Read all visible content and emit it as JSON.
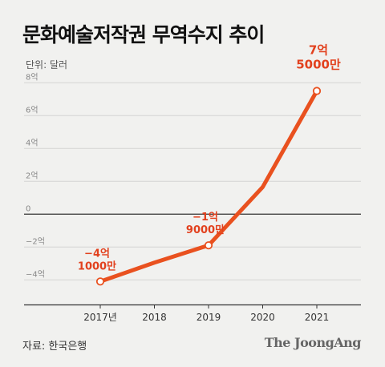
{
  "title": "문화예술저작권 무역수지 추이",
  "unit": "단위: 달러",
  "source": "자료: 한국은행",
  "brand": "The JoongAng",
  "colors": {
    "line": "#e9511f",
    "annotation": "#e2411e",
    "grid": "#d4d4d4",
    "axis": "#333333",
    "background": "#f1f1ef"
  },
  "chart_data": {
    "type": "line",
    "x": [
      "2017년",
      "2018",
      "2019",
      "2020",
      "2021"
    ],
    "series": [
      {
        "values": [
          -4.1,
          -2.95,
          -1.9,
          1.65,
          7.5
        ]
      }
    ],
    "ylim": [
      -5.5,
      8.5
    ],
    "yticks": [
      8,
      6,
      4,
      2,
      0,
      -2,
      -4
    ],
    "ytick_labels": [
      "8억",
      "6억",
      "4억",
      "2억",
      "0",
      "−2억",
      "−4억"
    ],
    "grid": true,
    "annotations": [
      {
        "index": 0,
        "lines": [
          "−4억",
          "1000만"
        ]
      },
      {
        "index": 2,
        "lines": [
          "−1억",
          "9000만"
        ]
      },
      {
        "index": 4,
        "lines": [
          "7억",
          "5000만"
        ]
      }
    ]
  }
}
